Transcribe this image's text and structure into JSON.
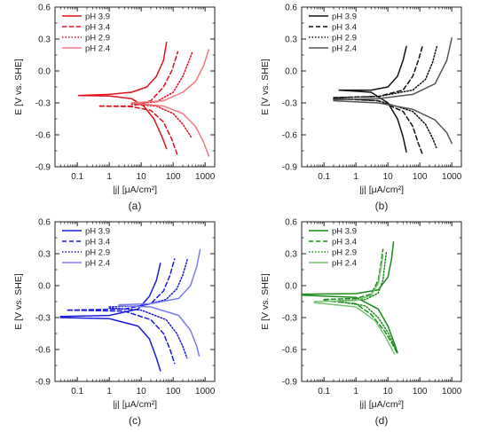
{
  "chart_data": [
    {
      "type": "line",
      "panel_label": "(a)",
      "xlabel": "|j| [μA/cm²]",
      "ylabel": "E [V vs. SHE]",
      "xscale": "log",
      "xlim": [
        0.02,
        2000
      ],
      "ylim": [
        -0.9,
        0.6
      ],
      "x_ticks": [
        "0.1",
        "1",
        "10",
        "100",
        "1000"
      ],
      "y_ticks": [
        "-0.9",
        "-0.6",
        "-0.3",
        "0.0",
        "0.3",
        "0.6"
      ],
      "legend_position": "top-left",
      "grid": false,
      "series": [
        {
          "name": "pH 3.9",
          "color": "#e0101a",
          "dash": "solid",
          "anodic": [
            [
              0.11,
              -0.23
            ],
            [
              1,
              -0.22
            ],
            [
              5,
              -0.2
            ],
            [
              15,
              -0.15
            ],
            [
              30,
              -0.05
            ],
            [
              50,
              0.1
            ],
            [
              62,
              0.27
            ]
          ],
          "cathodic": [
            [
              0.11,
              -0.23
            ],
            [
              1,
              -0.235
            ],
            [
              5,
              -0.26
            ],
            [
              12,
              -0.33
            ],
            [
              25,
              -0.45
            ],
            [
              45,
              -0.62
            ],
            [
              62,
              -0.73
            ]
          ]
        },
        {
          "name": "pH 3.4",
          "color": "#e0101a",
          "dash": "dashed",
          "anodic": [
            [
              0.5,
              -0.33
            ],
            [
              5,
              -0.33
            ],
            [
              20,
              -0.28
            ],
            [
              50,
              -0.15
            ],
            [
              90,
              0.0
            ],
            [
              140,
              0.18
            ]
          ],
          "cathodic": [
            [
              0.5,
              -0.33
            ],
            [
              5,
              -0.335
            ],
            [
              20,
              -0.37
            ],
            [
              50,
              -0.48
            ],
            [
              90,
              -0.64
            ],
            [
              140,
              -0.8
            ]
          ]
        },
        {
          "name": "pH 2.9",
          "color": "#e0101a",
          "dash": "dotted",
          "anodic": [
            [
              5,
              -0.31
            ],
            [
              30,
              -0.29
            ],
            [
              100,
              -0.2
            ],
            [
              200,
              -0.05
            ],
            [
              300,
              0.08
            ],
            [
              400,
              0.18
            ]
          ],
          "cathodic": [
            [
              5,
              -0.31
            ],
            [
              30,
              -0.33
            ],
            [
              100,
              -0.4
            ],
            [
              200,
              -0.5
            ],
            [
              300,
              -0.58
            ],
            [
              380,
              -0.63
            ]
          ]
        },
        {
          "name": "pH 2.4",
          "color": "#f07880",
          "dash": "solid",
          "anodic": [
            [
              5,
              -0.3
            ],
            [
              50,
              -0.28
            ],
            [
              200,
              -0.2
            ],
            [
              500,
              -0.1
            ],
            [
              900,
              0.05
            ],
            [
              1300,
              0.2
            ]
          ],
          "cathodic": [
            [
              5,
              -0.3
            ],
            [
              50,
              -0.33
            ],
            [
              200,
              -0.4
            ],
            [
              500,
              -0.52
            ],
            [
              900,
              -0.67
            ],
            [
              1300,
              -0.8
            ]
          ]
        }
      ]
    },
    {
      "type": "line",
      "panel_label": "(b)",
      "xlabel": "|j| [μA/cm²]",
      "ylabel": "E [V vs. SHE]",
      "xscale": "log",
      "xlim": [
        0.02,
        2000
      ],
      "ylim": [
        -0.9,
        0.6
      ],
      "x_ticks": [
        "0.1",
        "1",
        "10",
        "100",
        "1000"
      ],
      "y_ticks": [
        "-0.9",
        "-0.6",
        "-0.3",
        "0.0",
        "0.3",
        "0.6"
      ],
      "legend_position": "top-left",
      "grid": false,
      "series": [
        {
          "name": "pH 3.9",
          "color": "#111111",
          "dash": "solid",
          "anodic": [
            [
              0.3,
              -0.18
            ],
            [
              3,
              -0.18
            ],
            [
              10,
              -0.15
            ],
            [
              20,
              -0.05
            ],
            [
              30,
              0.1
            ],
            [
              38,
              0.23
            ]
          ],
          "cathodic": [
            [
              0.3,
              -0.18
            ],
            [
              3,
              -0.2
            ],
            [
              10,
              -0.3
            ],
            [
              20,
              -0.45
            ],
            [
              30,
              -0.62
            ],
            [
              38,
              -0.76
            ]
          ]
        },
        {
          "name": "pH 3.4",
          "color": "#111111",
          "dash": "dashed",
          "anodic": [
            [
              0.2,
              -0.25
            ],
            [
              5,
              -0.24
            ],
            [
              30,
              -0.18
            ],
            [
              60,
              -0.05
            ],
            [
              90,
              0.1
            ],
            [
              120,
              0.23
            ]
          ],
          "cathodic": [
            [
              0.2,
              -0.26
            ],
            [
              5,
              -0.28
            ],
            [
              30,
              -0.38
            ],
            [
              60,
              -0.52
            ],
            [
              90,
              -0.68
            ],
            [
              120,
              -0.78
            ]
          ]
        },
        {
          "name": "pH 2.9",
          "color": "#111111",
          "dash": "dotted",
          "anodic": [
            [
              0.3,
              -0.25
            ],
            [
              5,
              -0.24
            ],
            [
              60,
              -0.18
            ],
            [
              150,
              -0.08
            ],
            [
              250,
              0.08
            ],
            [
              350,
              0.24
            ]
          ],
          "cathodic": [
            [
              0.3,
              -0.26
            ],
            [
              5,
              -0.28
            ],
            [
              60,
              -0.38
            ],
            [
              150,
              -0.5
            ],
            [
              250,
              -0.63
            ],
            [
              330,
              -0.72
            ]
          ]
        },
        {
          "name": "pH 2.4",
          "color": "#555555",
          "dash": "solid",
          "anodic": [
            [
              0.2,
              -0.27
            ],
            [
              5,
              -0.26
            ],
            [
              60,
              -0.22
            ],
            [
              300,
              -0.12
            ],
            [
              700,
              0.1
            ],
            [
              1000,
              0.31
            ]
          ],
          "cathodic": [
            [
              0.2,
              -0.28
            ],
            [
              5,
              -0.3
            ],
            [
              60,
              -0.36
            ],
            [
              300,
              -0.46
            ],
            [
              700,
              -0.58
            ],
            [
              1000,
              -0.68
            ]
          ]
        }
      ]
    },
    {
      "type": "line",
      "panel_label": "(c)",
      "xlabel": "|j| [μA/cm²]",
      "ylabel": "E [V vs. SHE]",
      "xscale": "log",
      "xlim": [
        0.02,
        2000
      ],
      "ylim": [
        -0.9,
        0.6
      ],
      "x_ticks": [
        "0.1",
        "1",
        "10",
        "100",
        "1000"
      ],
      "y_ticks": [
        "-0.9",
        "-0.6",
        "-0.3",
        "0.0",
        "0.3",
        "0.6"
      ],
      "legend_position": "top-left",
      "grid": false,
      "series": [
        {
          "name": "pH 3.9",
          "color": "#1a1ad8",
          "dash": "solid",
          "anodic": [
            [
              0.03,
              -0.29
            ],
            [
              1,
              -0.28
            ],
            [
              8,
              -0.22
            ],
            [
              18,
              -0.1
            ],
            [
              30,
              0.05
            ],
            [
              40,
              0.21
            ]
          ],
          "cathodic": [
            [
              0.03,
              -0.3
            ],
            [
              1,
              -0.31
            ],
            [
              8,
              -0.38
            ],
            [
              18,
              -0.5
            ],
            [
              30,
              -0.68
            ],
            [
              40,
              -0.8
            ]
          ]
        },
        {
          "name": "pH 3.4",
          "color": "#1a1ad8",
          "dash": "dashed",
          "anodic": [
            [
              0.05,
              -0.23
            ],
            [
              3,
              -0.22
            ],
            [
              20,
              -0.17
            ],
            [
              50,
              -0.05
            ],
            [
              80,
              0.1
            ],
            [
              110,
              0.25
            ]
          ],
          "cathodic": [
            [
              0.05,
              -0.23
            ],
            [
              3,
              -0.24
            ],
            [
              20,
              -0.32
            ],
            [
              50,
              -0.45
            ],
            [
              80,
              -0.6
            ],
            [
              110,
              -0.73
            ]
          ]
        },
        {
          "name": "pH 2.9",
          "color": "#1a1ad8",
          "dash": "dotted",
          "anodic": [
            [
              1,
              -0.2
            ],
            [
              10,
              -0.19
            ],
            [
              60,
              -0.13
            ],
            [
              130,
              -0.03
            ],
            [
              200,
              0.1
            ],
            [
              280,
              0.25
            ]
          ],
          "cathodic": [
            [
              1,
              -0.21
            ],
            [
              10,
              -0.23
            ],
            [
              60,
              -0.32
            ],
            [
              130,
              -0.45
            ],
            [
              200,
              -0.57
            ],
            [
              270,
              -0.68
            ]
          ]
        },
        {
          "name": "pH 2.4",
          "color": "#7b7bf0",
          "dash": "solid",
          "anodic": [
            [
              2,
              -0.18
            ],
            [
              20,
              -0.17
            ],
            [
              150,
              -0.12
            ],
            [
              350,
              0.0
            ],
            [
              550,
              0.18
            ],
            [
              700,
              0.34
            ]
          ],
          "cathodic": [
            [
              2,
              -0.19
            ],
            [
              20,
              -0.2
            ],
            [
              150,
              -0.28
            ],
            [
              350,
              -0.42
            ],
            [
              550,
              -0.57
            ],
            [
              650,
              -0.66
            ]
          ]
        }
      ]
    },
    {
      "type": "line",
      "panel_label": "(d)",
      "xlabel": "|j| [μA/cm²]",
      "ylabel": "E [V vs. SHE]",
      "xscale": "log",
      "xlim": [
        0.02,
        2000
      ],
      "ylim": [
        -0.9,
        0.6
      ],
      "x_ticks": [
        "0.1",
        "1",
        "10",
        "100",
        "1000"
      ],
      "y_ticks": [
        "-0.9",
        "-0.6",
        "-0.3",
        "0.0",
        "0.3",
        "0.6"
      ],
      "legend_position": "top-left",
      "grid": false,
      "series": [
        {
          "name": "pH 3.9",
          "color": "#1a8a1a",
          "dash": "solid",
          "anodic": [
            [
              0.02,
              -0.08
            ],
            [
              1,
              -0.075
            ],
            [
              5,
              -0.04
            ],
            [
              10,
              0.08
            ],
            [
              13,
              0.25
            ],
            [
              15,
              0.41
            ]
          ],
          "cathodic": [
            [
              0.02,
              -0.09
            ],
            [
              1,
              -0.11
            ],
            [
              5,
              -0.22
            ],
            [
              10,
              -0.38
            ],
            [
              15,
              -0.52
            ],
            [
              20,
              -0.63
            ]
          ]
        },
        {
          "name": "pH 3.4",
          "color": "#1a8a1a",
          "dash": "dashed",
          "anodic": [
            [
              0.1,
              -0.13
            ],
            [
              1,
              -0.12
            ],
            [
              3,
              -0.08
            ],
            [
              5,
              0.05
            ],
            [
              6,
              0.2
            ],
            [
              7,
              0.34
            ]
          ],
          "cathodic": [
            [
              0.1,
              -0.14
            ],
            [
              1,
              -0.17
            ],
            [
              3,
              -0.27
            ],
            [
              8,
              -0.43
            ],
            [
              14,
              -0.55
            ],
            [
              20,
              -0.64
            ]
          ]
        },
        {
          "name": "pH 2.9",
          "color": "#1a8a1a",
          "dash": "dotted",
          "anodic": [
            [
              0.3,
              -0.14
            ],
            [
              2,
              -0.13
            ],
            [
              5,
              -0.07
            ],
            [
              7,
              0.05
            ],
            [
              8,
              0.2
            ],
            [
              9,
              0.32
            ]
          ],
          "cathodic": [
            [
              0.3,
              -0.15
            ],
            [
              2,
              -0.19
            ],
            [
              5,
              -0.3
            ],
            [
              10,
              -0.44
            ],
            [
              15,
              -0.55
            ],
            [
              19,
              -0.62
            ]
          ]
        },
        {
          "name": "pH 2.4",
          "color": "#74c474",
          "dash": "solid",
          "anodic": [
            [
              0.05,
              -0.15
            ],
            [
              1,
              -0.14
            ],
            [
              3,
              -0.09
            ],
            [
              5,
              0.02
            ],
            [
              6,
              0.16
            ],
            [
              7,
              0.28
            ]
          ],
          "cathodic": [
            [
              0.05,
              -0.16
            ],
            [
              1,
              -0.2
            ],
            [
              4,
              -0.33
            ],
            [
              8,
              -0.47
            ],
            [
              12,
              -0.57
            ],
            [
              16,
              -0.64
            ]
          ]
        }
      ]
    }
  ]
}
